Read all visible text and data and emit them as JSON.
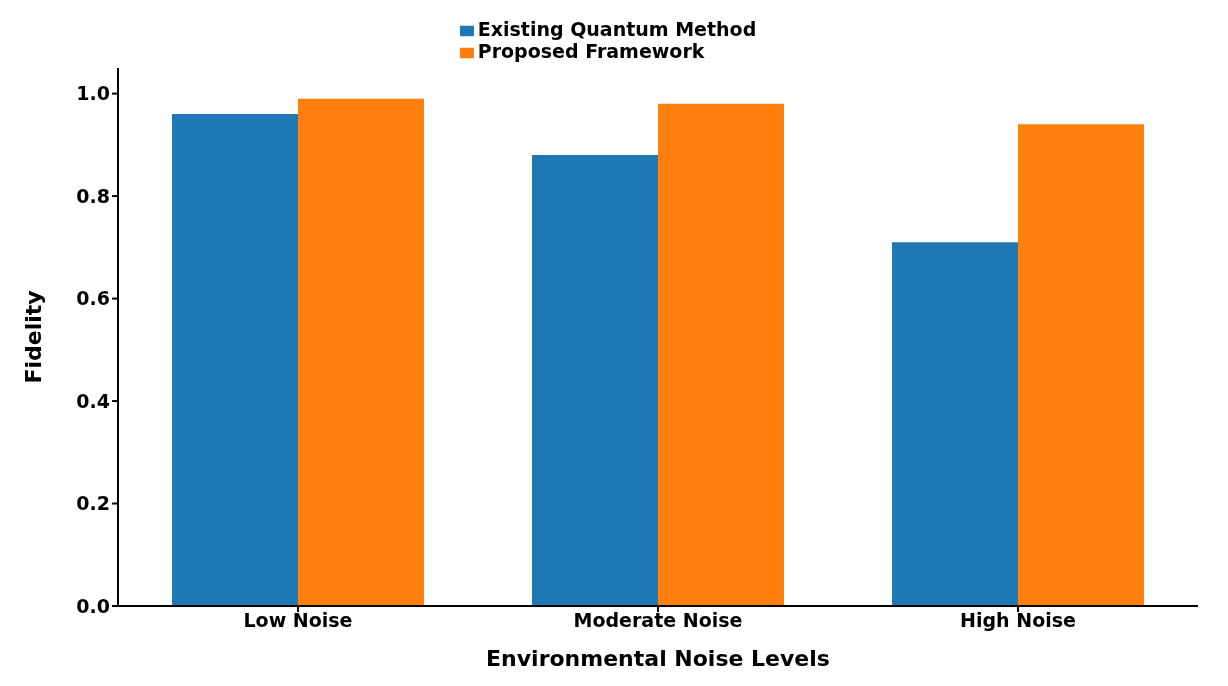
{
  "chart_data": {
    "type": "bar",
    "xlabel": "Environmental Noise Levels",
    "ylabel": "Fidelity",
    "categories": [
      "Low Noise",
      "Moderate Noise",
      "High Noise"
    ],
    "series": [
      {
        "name": "Existing Quantum Method",
        "color": "#1f77b4",
        "values": [
          0.96,
          0.88,
          0.71
        ]
      },
      {
        "name": "Proposed Framework",
        "color": "#ff7f0e",
        "values": [
          0.99,
          0.98,
          0.94
        ]
      }
    ],
    "ylim": [
      0,
      1.05
    ],
    "yticks": [
      {
        "value": 0,
        "label": "0.0"
      },
      0.2,
      0.4,
      0.6,
      0.8,
      {
        "value": 1,
        "label": "1.0"
      }
    ],
    "grid": false,
    "legend": "top"
  }
}
